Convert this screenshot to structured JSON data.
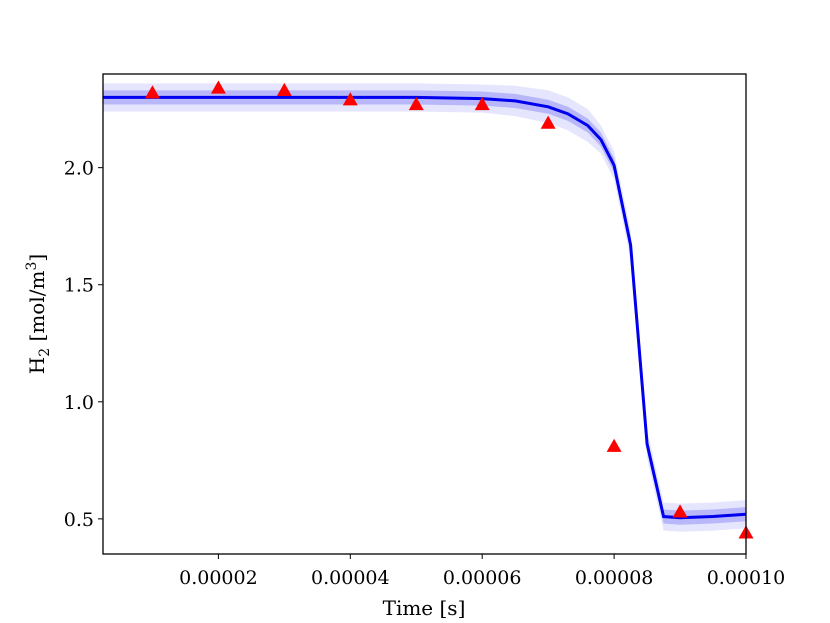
{
  "chart_data": {
    "type": "line",
    "title": "",
    "xlabel": "Time [s]",
    "ylabel_main": "H",
    "ylabel_sub": "2",
    "ylabel_rest": " [mol/m",
    "ylabel_sup": "3",
    "ylabel_end": "]",
    "xlim": [
      2.5e-06,
      0.0001
    ],
    "ylim": [
      0.35,
      2.4
    ],
    "x_ticks": [
      2e-05,
      4e-05,
      6e-05,
      8e-05,
      0.0001
    ],
    "x_tick_labels": [
      "0.00002",
      "0.00004",
      "0.00006",
      "0.00008",
      "0.00010"
    ],
    "y_ticks": [
      0.5,
      1.0,
      1.5,
      2.0
    ],
    "y_tick_labels": [
      "0.5",
      "1.0",
      "1.5",
      "2.0"
    ],
    "grid": false,
    "colors": {
      "line": "#0000ee",
      "band": "#0000ee",
      "marker": "#ff0000"
    },
    "series": [
      {
        "kind": "line",
        "x": [
          2.5e-06,
          1e-05,
          2e-05,
          3e-05,
          4e-05,
          5e-05,
          6e-05,
          6.5e-05,
          7e-05,
          7.3e-05,
          7.6e-05,
          7.8e-05,
          8e-05,
          8.25e-05,
          8.5e-05,
          8.75e-05,
          9e-05,
          9.5e-05,
          0.0001
        ],
        "y": [
          2.3,
          2.3,
          2.3,
          2.3,
          2.3,
          2.3,
          2.295,
          2.285,
          2.26,
          2.23,
          2.18,
          2.12,
          2.01,
          1.67,
          0.82,
          0.51,
          0.505,
          0.51,
          0.52
        ],
        "band_inner": [
          0.03,
          0.03,
          0.03,
          0.03,
          0.03,
          0.03,
          0.03,
          0.03,
          0.03,
          0.03,
          0.03,
          0.03,
          0.03,
          0.03,
          0.03,
          0.03,
          0.03,
          0.03,
          0.03
        ],
        "band_outer": [
          0.06,
          0.06,
          0.06,
          0.06,
          0.06,
          0.06,
          0.06,
          0.065,
          0.07,
          0.07,
          0.07,
          0.06,
          0.06,
          0.06,
          0.06,
          0.06,
          0.06,
          0.06,
          0.06
        ]
      },
      {
        "kind": "scatter",
        "marker": "triangle",
        "x": [
          1e-05,
          2e-05,
          3e-05,
          4e-05,
          5e-05,
          6e-05,
          7e-05,
          8e-05,
          9e-05,
          0.0001
        ],
        "y": [
          2.32,
          2.34,
          2.33,
          2.29,
          2.27,
          2.27,
          2.19,
          0.81,
          0.53,
          0.44
        ]
      }
    ]
  }
}
